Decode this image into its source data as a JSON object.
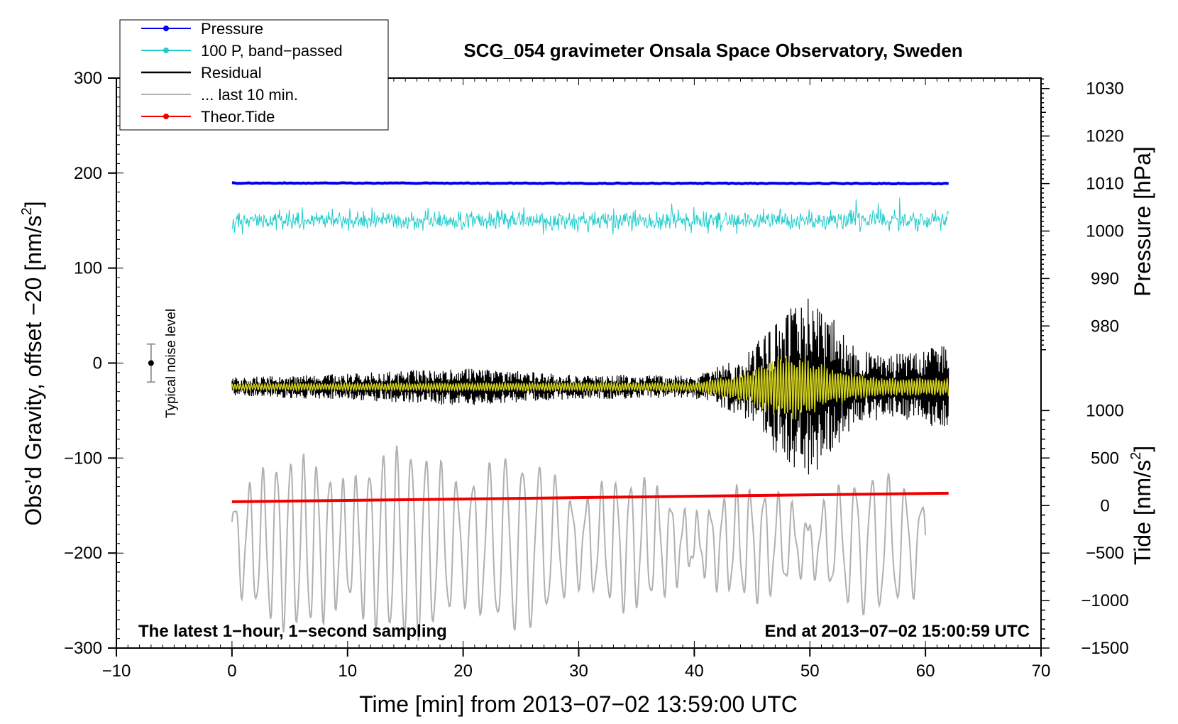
{
  "chart_data": {
    "type": "line",
    "title": "SCG_054 gravimeter Onsala Space Observatory, Sweden",
    "xlabel": "Time [min] from 2013−07−02 13:59:00 UTC",
    "ylabel_left_main": "Obs’d Gravity, offset −20 [nm/s",
    "ylabel_left_sup": "2",
    "ylabel_left_end": "]",
    "ylabel_right_pressure": "Pressure [hPa]",
    "ylabel_right_tide_main": "Tide [nm/s",
    "ylabel_right_tide_sup": "2",
    "ylabel_right_tide_end": "]",
    "xlim": [
      -10,
      70
    ],
    "ylim": [
      -300,
      300
    ],
    "x_ticks": [
      {
        "value": -10,
        "label": "−10"
      },
      {
        "value": 0,
        "label": "0"
      },
      {
        "value": 10,
        "label": "10"
      },
      {
        "value": 20,
        "label": "20"
      },
      {
        "value": 30,
        "label": "30"
      },
      {
        "value": 40,
        "label": "40"
      },
      {
        "value": 50,
        "label": "50"
      },
      {
        "value": 60,
        "label": "60"
      },
      {
        "value": 70,
        "label": "70"
      }
    ],
    "y_ticks": [
      {
        "value": 300,
        "label": "300"
      },
      {
        "value": 200,
        "label": "200"
      },
      {
        "value": 100,
        "label": "100"
      },
      {
        "value": 0,
        "label": "0"
      },
      {
        "value": -100,
        "label": "−100"
      },
      {
        "value": -200,
        "label": "−200"
      },
      {
        "value": -300,
        "label": "−300"
      }
    ],
    "pressure_axis": {
      "note": "1 hPa = 5 nm/s² on left axis; 1010 hPa at left value 189",
      "ticks": [
        {
          "value": 1030,
          "label": "1030"
        },
        {
          "value": 1020,
          "label": "1020"
        },
        {
          "value": 1010,
          "label": "1010"
        },
        {
          "value": 1000,
          "label": "1000"
        },
        {
          "value": 990,
          "label": "990"
        },
        {
          "value": 980,
          "label": "980"
        }
      ]
    },
    "tide_axis": {
      "note": "500 nm/s² tide = 50 on left axis; 0 tide at left value -150",
      "ticks": [
        {
          "value": 1000,
          "label": "1000"
        },
        {
          "value": 500,
          "label": "500"
        },
        {
          "value": 0,
          "label": "0"
        },
        {
          "value": -500,
          "label": "−500"
        },
        {
          "value": -1000,
          "label": "−1000"
        },
        {
          "value": -1500,
          "label": "−1500"
        }
      ]
    },
    "legend": [
      {
        "name": "Pressure",
        "color": "#0000ee",
        "marker": true
      },
      {
        "name": "100 P, band−passed",
        "color": "#22cccc",
        "marker": true
      },
      {
        "name": "Residual",
        "color": "#000000",
        "marker": false
      },
      {
        "name": "... last 10 min.",
        "color": "#b0b0b0",
        "marker": false
      },
      {
        "name": "Theor.Tide",
        "color": "#ee0000",
        "marker": true
      }
    ],
    "series": [
      {
        "name": "Pressure",
        "color": "#0000ee",
        "x_range": [
          0,
          62
        ],
        "level": 189.5,
        "trend": [
          0,
          62,
          189.5,
          189.0
        ]
      },
      {
        "name": "100 P, band−passed",
        "color": "#22cccc",
        "x_range": [
          0,
          62
        ],
        "center": 150,
        "amplitude_range": [
          4,
          30
        ]
      },
      {
        "name": "Residual",
        "color": "#000000",
        "x_range": [
          0,
          62
        ],
        "center": -25,
        "envelope": [
          [
            0,
            10
          ],
          [
            10,
            14
          ],
          [
            20,
            20
          ],
          [
            30,
            13
          ],
          [
            40,
            12
          ],
          [
            44,
            30
          ],
          [
            46,
            55
          ],
          [
            48,
            85
          ],
          [
            50,
            95
          ],
          [
            52,
            75
          ],
          [
            54,
            40
          ],
          [
            56,
            35
          ],
          [
            58,
            35
          ],
          [
            60,
            40
          ],
          [
            62,
            45
          ]
        ]
      },
      {
        "name": "Residual (filtered)",
        "color": "#d4d41e",
        "x_range": [
          0,
          62
        ],
        "center": -25,
        "envelope": [
          [
            0,
            4
          ],
          [
            40,
            5
          ],
          [
            44,
            15
          ],
          [
            48,
            38
          ],
          [
            50,
            30
          ],
          [
            52,
            20
          ],
          [
            56,
            10
          ],
          [
            62,
            10
          ]
        ]
      },
      {
        "name": "... last 10 min.",
        "color": "#b0b0b0",
        "x_range": [
          0,
          60
        ],
        "center": -190,
        "amplitude_range": [
          25,
          95
        ]
      },
      {
        "name": "Theor.Tide",
        "color": "#ee0000",
        "points": [
          [
            0,
            -146
          ],
          [
            62,
            -137
          ]
        ]
      }
    ],
    "annotations": {
      "bottom_left": "The latest 1−hour, 1−second sampling",
      "bottom_right": "End at 2013−07−02 15:00:59 UTC",
      "noise_label": "Typical noise level",
      "noise_bar": {
        "x": -7,
        "center": 0,
        "half_range": 20
      }
    }
  }
}
